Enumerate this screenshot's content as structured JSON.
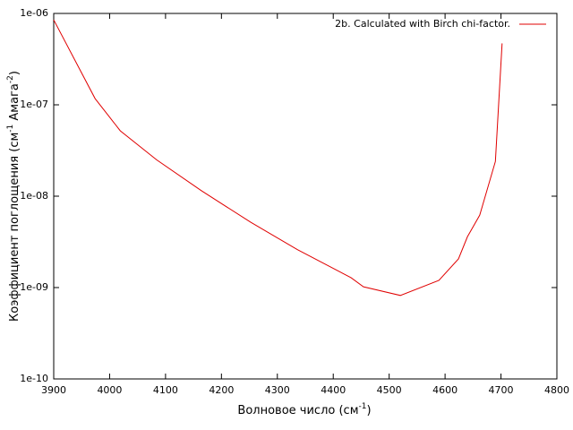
{
  "chart_data": {
    "type": "line",
    "x_label": [
      "Волновое число (см",
      "-1",
      ")"
    ],
    "y_label": [
      "Коэффициент поглощения (см",
      "-1",
      " Амага",
      "-2",
      ")"
    ],
    "log_y": true,
    "legend": "top-right",
    "x": [
      3900,
      3974,
      4019,
      4084,
      4164,
      4252,
      4336,
      4432,
      4454,
      4520,
      4589,
      4624,
      4640,
      4662,
      4690,
      4702
    ],
    "series": [
      {
        "name": "2b. Calculated with Birch chi-factor.",
        "color": "#e00000",
        "values": [
          8.5e-07,
          1.17e-07,
          5.2e-08,
          2.5e-08,
          1.15e-08,
          5.2e-09,
          2.6e-09,
          1.28e-09,
          1.02e-09,
          8.2e-10,
          1.2e-09,
          2.06e-09,
          3.6e-09,
          6.2e-09,
          2.4e-08,
          4.7e-07
        ]
      }
    ],
    "xlim": [
      3900,
      4800
    ],
    "xticks": [
      3900,
      4000,
      4100,
      4200,
      4300,
      4400,
      4500,
      4600,
      4700,
      4800
    ],
    "ylim": [
      1e-10,
      1e-06
    ],
    "yticks": [
      {
        "value": 1e-10,
        "label": "1e-10"
      },
      {
        "value": 1e-09,
        "label": "1e-09"
      },
      {
        "value": 1e-08,
        "label": "1e-08"
      },
      {
        "value": 1e-07,
        "label": "1e-07"
      },
      {
        "value": 1e-06,
        "label": "1e-06"
      }
    ]
  }
}
